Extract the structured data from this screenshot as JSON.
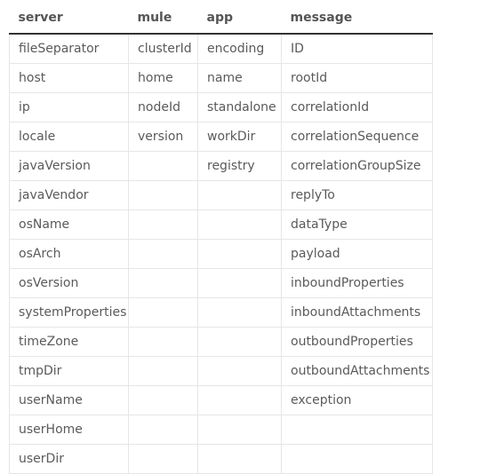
{
  "table": {
    "headers": [
      "server",
      "mule",
      "app",
      "message"
    ],
    "rows": [
      [
        "fileSeparator",
        "clusterId",
        "encoding",
        "ID"
      ],
      [
        "host",
        "home",
        "name",
        "rootId"
      ],
      [
        "ip",
        "nodeId",
        "standalone",
        "correlationId"
      ],
      [
        "locale",
        "version",
        "workDir",
        "correlationSequence"
      ],
      [
        "javaVersion",
        "",
        "registry",
        "correlationGroupSize"
      ],
      [
        "javaVendor",
        "",
        "",
        "replyTo"
      ],
      [
        "osName",
        "",
        "",
        "dataType"
      ],
      [
        "osArch",
        "",
        "",
        "payload"
      ],
      [
        "osVersion",
        "",
        "",
        "inboundProperties"
      ],
      [
        "systemProperties",
        "",
        "",
        "inboundAttachments"
      ],
      [
        "timeZone",
        "",
        "",
        "outboundProperties"
      ],
      [
        "tmpDir",
        "",
        "",
        "outboundAttachments"
      ],
      [
        "userName",
        "",
        "",
        "exception"
      ],
      [
        "userHome",
        "",
        "",
        ""
      ],
      [
        "userDir",
        "",
        "",
        ""
      ]
    ]
  }
}
